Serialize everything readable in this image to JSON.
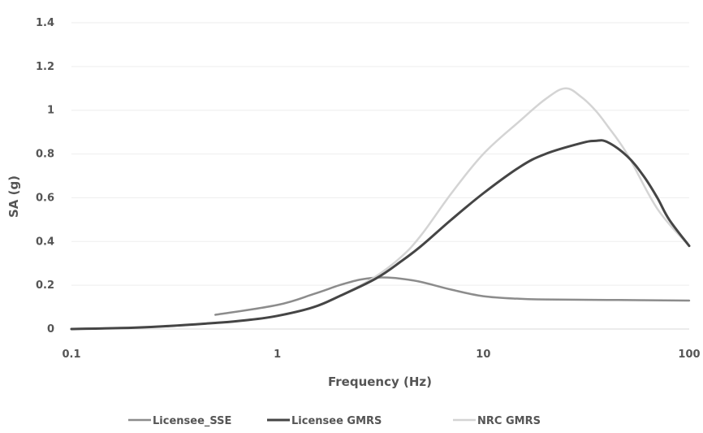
{
  "chart_data": {
    "type": "line",
    "title": "",
    "xlabel": "Frequency (Hz)",
    "ylabel": "SA (g)",
    "x_scale": "log",
    "xlim": [
      0.1,
      100
    ],
    "ylim": [
      0,
      1.4
    ],
    "x_ticks": [
      0.1,
      1,
      10,
      100
    ],
    "x_tick_labels": [
      "0.1",
      "1",
      "10",
      "100"
    ],
    "y_ticks": [
      0,
      0.2,
      0.4,
      0.6,
      0.8,
      1,
      1.2,
      1.4
    ],
    "y_tick_labels": [
      "0",
      "0.2",
      "0.4",
      "0.6",
      "0.8",
      "1",
      "1.2",
      "1.4"
    ],
    "grid": "horizontal",
    "legend_position": "bottom",
    "series": [
      {
        "name": "Licensee_SSE",
        "color": "#8c8c8c",
        "stroke_width": 2.5,
        "points": [
          [
            0.5,
            0.065
          ],
          [
            1,
            0.11
          ],
          [
            1.5,
            0.16
          ],
          [
            2,
            0.2
          ],
          [
            2.5,
            0.225
          ],
          [
            3,
            0.235
          ],
          [
            3.5,
            0.235
          ],
          [
            4,
            0.23
          ],
          [
            5,
            0.215
          ],
          [
            7,
            0.18
          ],
          [
            10,
            0.15
          ],
          [
            15,
            0.138
          ],
          [
            20,
            0.135
          ],
          [
            40,
            0.133
          ],
          [
            100,
            0.13
          ]
        ]
      },
      {
        "name": "Licensee GMRS",
        "color": "#454545",
        "stroke_width": 3,
        "points": [
          [
            0.1,
            0.0
          ],
          [
            0.2,
            0.006
          ],
          [
            0.3,
            0.014
          ],
          [
            0.5,
            0.028
          ],
          [
            0.7,
            0.04
          ],
          [
            1,
            0.06
          ],
          [
            1.5,
            0.1
          ],
          [
            2,
            0.15
          ],
          [
            3,
            0.23
          ],
          [
            4,
            0.31
          ],
          [
            5,
            0.38
          ],
          [
            7,
            0.5
          ],
          [
            10,
            0.62
          ],
          [
            15,
            0.74
          ],
          [
            20,
            0.8
          ],
          [
            30,
            0.85
          ],
          [
            35,
            0.86
          ],
          [
            40,
            0.855
          ],
          [
            50,
            0.79
          ],
          [
            60,
            0.7
          ],
          [
            70,
            0.6
          ],
          [
            80,
            0.5
          ],
          [
            100,
            0.38
          ]
        ]
      },
      {
        "name": "NRC GMRS",
        "color": "#d4d4d4",
        "stroke_width": 2.5,
        "points": [
          [
            0.1,
            0.0
          ],
          [
            0.2,
            0.006
          ],
          [
            0.3,
            0.014
          ],
          [
            0.5,
            0.028
          ],
          [
            0.7,
            0.04
          ],
          [
            1,
            0.06
          ],
          [
            1.5,
            0.1
          ],
          [
            2,
            0.15
          ],
          [
            3,
            0.24
          ],
          [
            4,
            0.33
          ],
          [
            5,
            0.43
          ],
          [
            7,
            0.62
          ],
          [
            10,
            0.8
          ],
          [
            15,
            0.95
          ],
          [
            20,
            1.05
          ],
          [
            25,
            1.1
          ],
          [
            30,
            1.06
          ],
          [
            35,
            1.0
          ],
          [
            40,
            0.93
          ],
          [
            50,
            0.8
          ],
          [
            70,
            0.55
          ],
          [
            100,
            0.38
          ]
        ]
      }
    ]
  }
}
